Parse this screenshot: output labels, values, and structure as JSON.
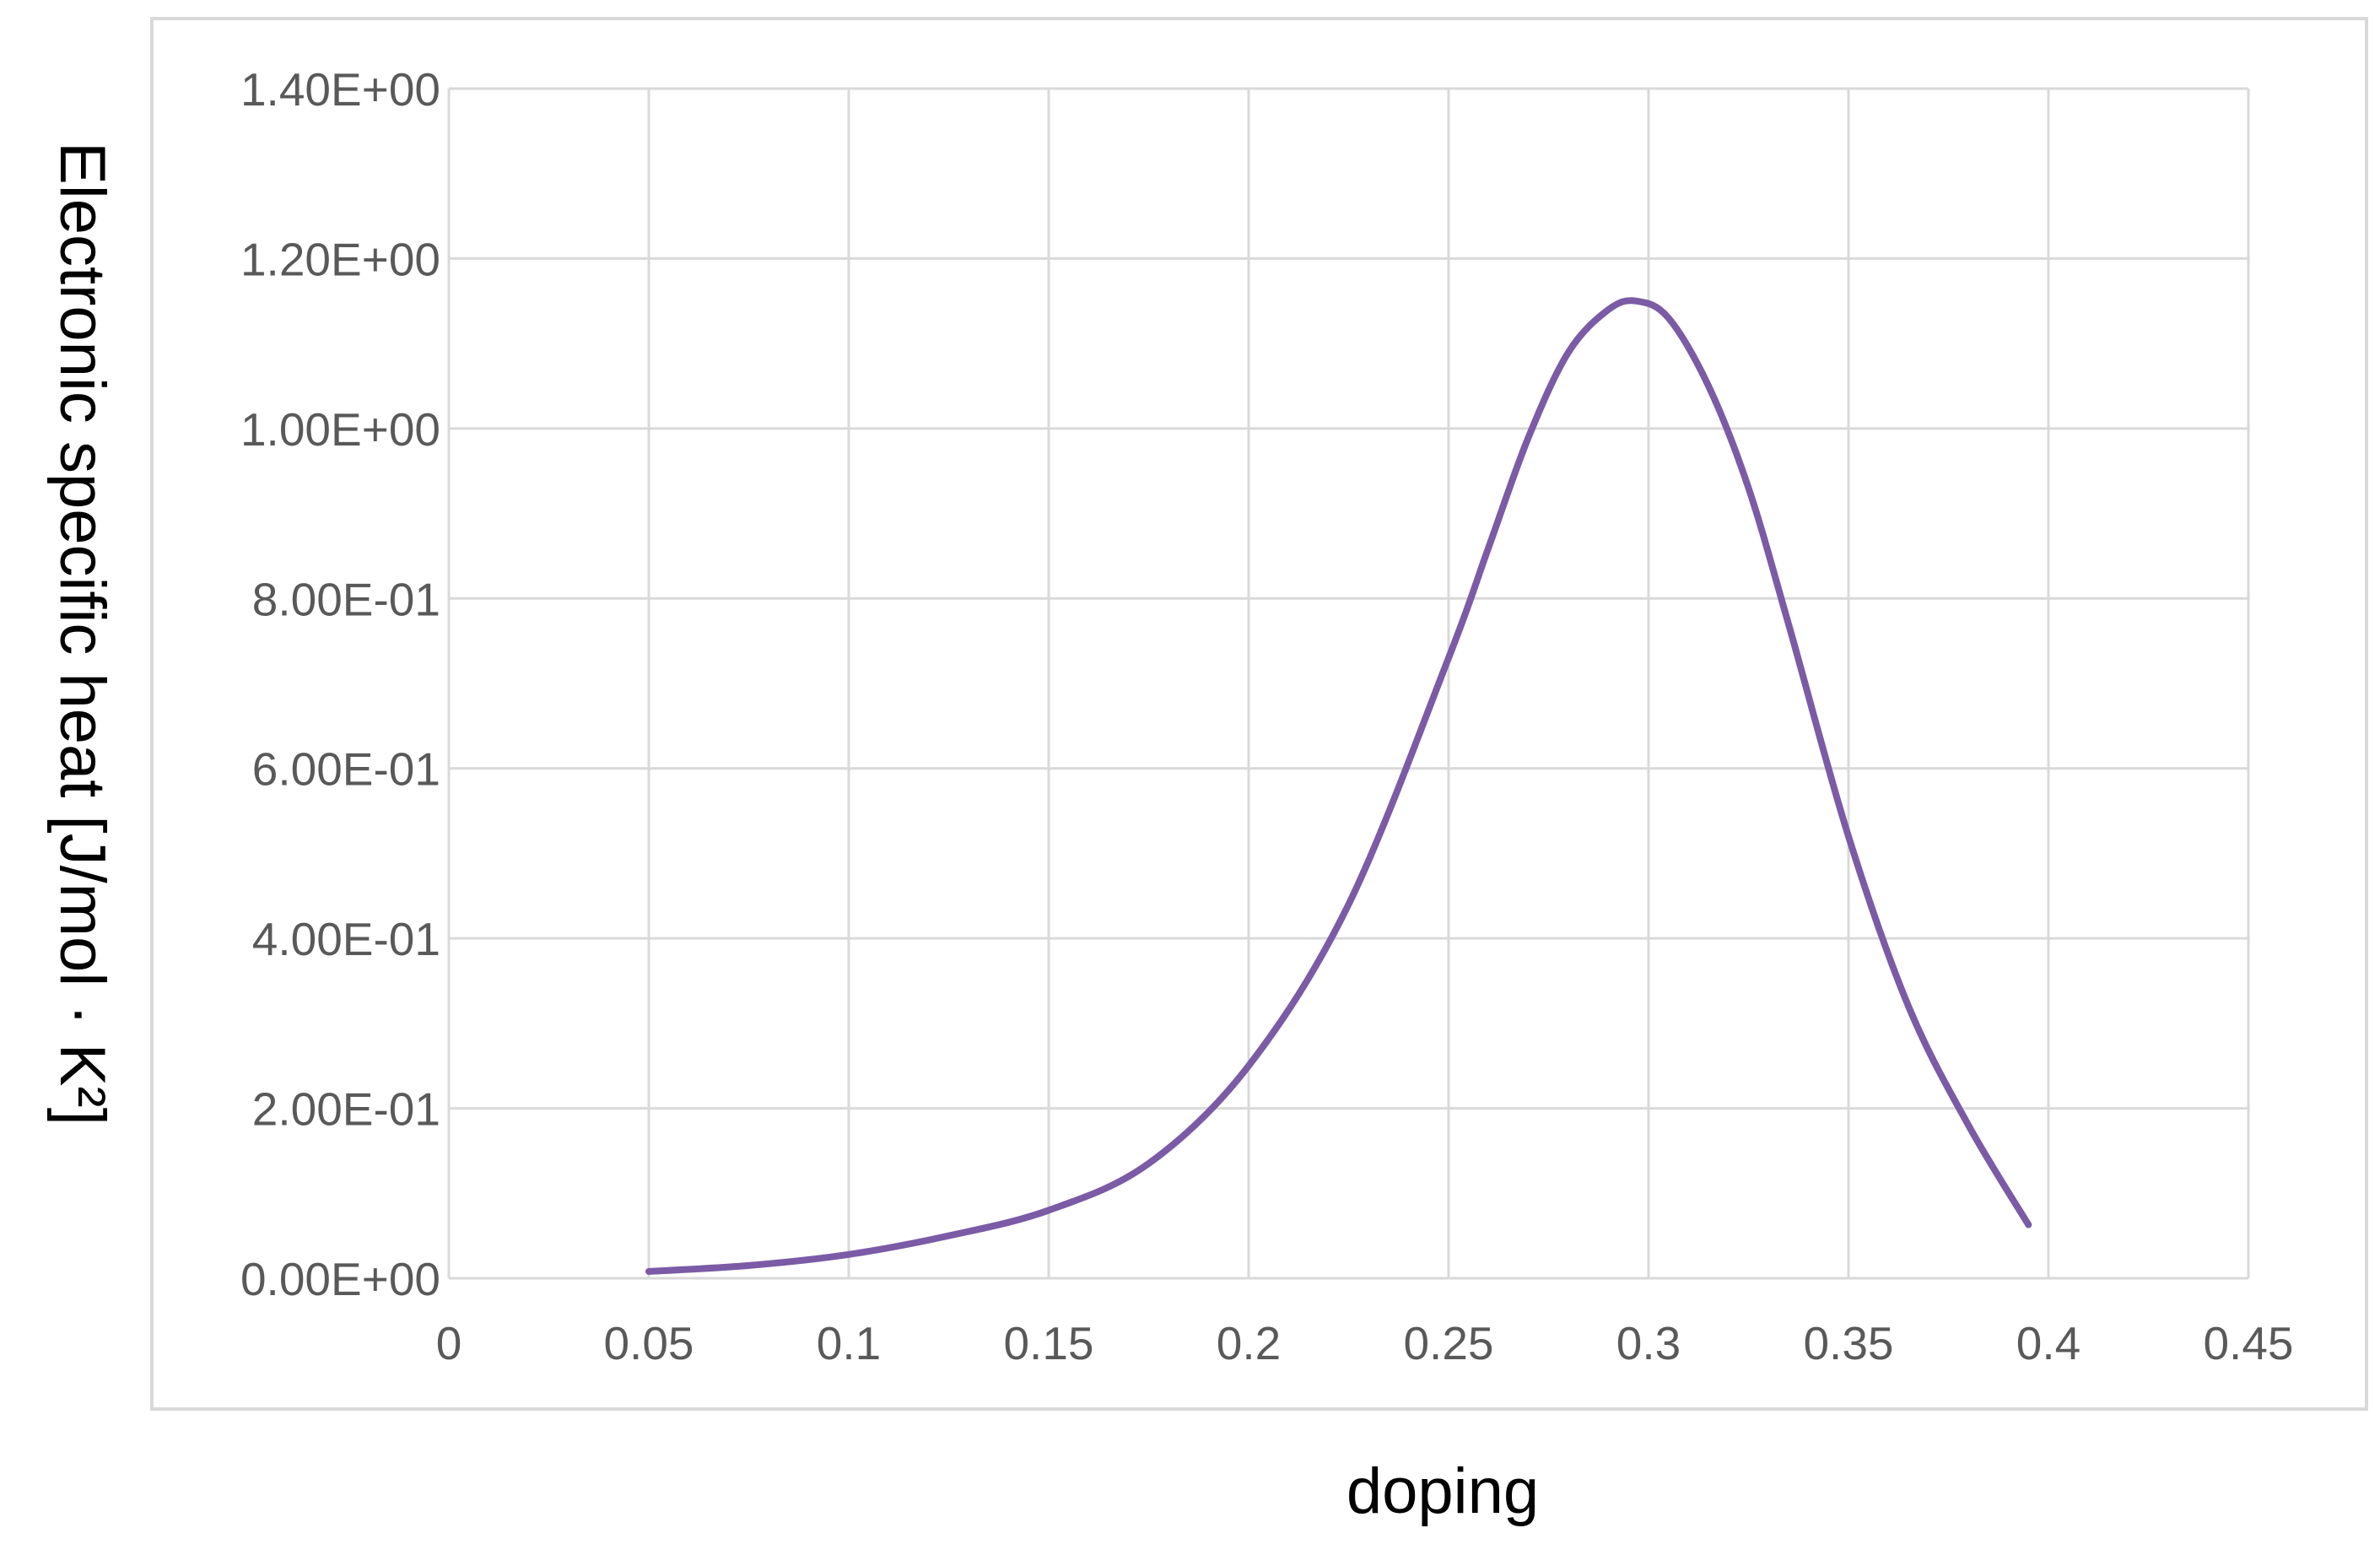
{
  "chart_data": {
    "type": "line",
    "title": "",
    "xlabel": "doping",
    "ylabel": "Electronic specific heat [J/mol · K²]",
    "xlim": [
      0,
      0.45
    ],
    "ylim": [
      0,
      1.4
    ],
    "x_ticks": [
      "0",
      "0.05",
      "0.1",
      "0.15",
      "0.2",
      "0.25",
      "0.3",
      "0.35",
      "0.4",
      "0.45"
    ],
    "y_ticks": [
      "0.00E+00",
      "2.00E-01",
      "4.00E-01",
      "6.00E-01",
      "8.00E-01",
      "1.00E+00",
      "1.20E+00",
      "1.40E+00"
    ],
    "grid": true,
    "legend": "none",
    "series": [
      {
        "color": "#7b5ba6",
        "x": [
          0.05,
          0.075,
          0.1,
          0.125,
          0.15,
          0.175,
          0.2,
          0.225,
          0.25,
          0.26,
          0.27,
          0.28,
          0.29,
          0.297,
          0.305,
          0.315,
          0.325,
          0.335,
          0.35,
          0.365,
          0.38,
          0.395
        ],
        "y": [
          0.008,
          0.015,
          0.028,
          0.05,
          0.08,
          0.135,
          0.25,
          0.44,
          0.73,
          0.86,
          0.99,
          1.09,
          1.14,
          1.15,
          1.13,
          1.05,
          0.93,
          0.77,
          0.52,
          0.32,
          0.18,
          0.063
        ]
      }
    ]
  }
}
